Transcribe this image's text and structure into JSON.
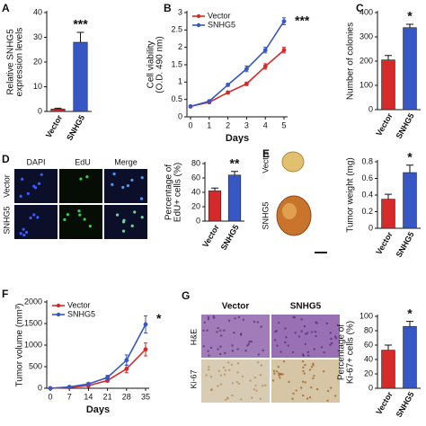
{
  "chart_data": [
    {
      "panel": "A",
      "type": "bar",
      "categories": [
        "Vector",
        "SNHG5"
      ],
      "values": [
        1,
        28
      ],
      "errors": [
        0.3,
        4
      ],
      "colors": [
        "#d42a2a",
        "#3757c4"
      ],
      "ylim": [
        0,
        40
      ],
      "yticks": [
        0,
        10,
        20,
        30,
        40
      ],
      "ylabel": [
        "Relative SNHG5",
        "expression levels"
      ],
      "annotation": "***"
    },
    {
      "panel": "B",
      "type": "line",
      "x": [
        0,
        1,
        2,
        3,
        4,
        5
      ],
      "xlim": [
        0,
        5
      ],
      "xticks": [
        0,
        1,
        2,
        3,
        4,
        5
      ],
      "ylim": [
        0,
        3
      ],
      "yticks": [
        0,
        0.5,
        1,
        1.5,
        2,
        2.5,
        3
      ],
      "xlabel": "Days",
      "ylabel": [
        "Cell viability",
        "(O.D. 490 nm)"
      ],
      "annotation": "***",
      "series": [
        {
          "name": "Vector",
          "color": "#d42a2a",
          "values": [
            0.3,
            0.42,
            0.7,
            0.95,
            1.45,
            1.92
          ],
          "errors": [
            0.02,
            0.03,
            0.04,
            0.05,
            0.08,
            0.08
          ]
        },
        {
          "name": "SNHG5",
          "color": "#3757c4",
          "values": [
            0.3,
            0.45,
            0.92,
            1.38,
            1.92,
            2.75
          ],
          "errors": [
            0.02,
            0.03,
            0.04,
            0.08,
            0.08,
            0.1
          ]
        }
      ]
    },
    {
      "panel": "C",
      "type": "bar",
      "categories": [
        "Vector",
        "SNHG5"
      ],
      "values": [
        205,
        338
      ],
      "errors": [
        18,
        14
      ],
      "colors": [
        "#d42a2a",
        "#3757c4"
      ],
      "ylim": [
        0,
        400
      ],
      "yticks": [
        0,
        100,
        200,
        300,
        400
      ],
      "ylabel": [
        "Number of colonies"
      ],
      "annotation": "*"
    },
    {
      "panel": "D",
      "type": "bar",
      "categories": [
        "Vector",
        "SNHG5"
      ],
      "values": [
        42,
        64
      ],
      "errors": [
        4,
        5
      ],
      "colors": [
        "#d42a2a",
        "#3757c4"
      ],
      "ylim": [
        0,
        80
      ],
      "yticks": [
        0,
        20,
        40,
        60,
        80
      ],
      "ylabel": [
        "Percentage of",
        "EdU+ cells (%)"
      ],
      "annotation": "**"
    },
    {
      "panel": "E",
      "type": "bar",
      "categories": [
        "Vector",
        "SNHG5"
      ],
      "values": [
        0.35,
        0.67
      ],
      "errors": [
        0.06,
        0.09
      ],
      "colors": [
        "#d42a2a",
        "#3757c4"
      ],
      "ylim": [
        0,
        0.8
      ],
      "yticks": [
        0,
        0.2,
        0.4,
        0.6,
        0.8
      ],
      "ylabel": [
        "Tumor weight (mg)"
      ],
      "annotation": "*"
    },
    {
      "panel": "F",
      "type": "line",
      "x": [
        0,
        7,
        14,
        21,
        28,
        35
      ],
      "xlim": [
        0,
        35
      ],
      "xticks": [
        0,
        7,
        14,
        21,
        28,
        35
      ],
      "ylim": [
        0,
        2000
      ],
      "yticks": [
        0,
        500,
        1000,
        1500,
        2000
      ],
      "xlabel": "Days",
      "ylabel": [
        "Tumor volume (mm³)"
      ],
      "annotation": "*",
      "series": [
        {
          "name": "Vector",
          "color": "#d42a2a",
          "values": [
            0,
            20,
            60,
            180,
            450,
            900
          ],
          "errors": [
            0,
            10,
            20,
            40,
            90,
            150
          ]
        },
        {
          "name": "SNHG5",
          "color": "#3757c4",
          "values": [
            0,
            30,
            100,
            250,
            650,
            1480
          ],
          "errors": [
            0,
            10,
            25,
            50,
            120,
            200
          ]
        }
      ]
    },
    {
      "panel": "G",
      "type": "bar",
      "categories": [
        "Vector",
        "SNHG5"
      ],
      "values": [
        53,
        86
      ],
      "errors": [
        7,
        7
      ],
      "colors": [
        "#d42a2a",
        "#3757c4"
      ],
      "ylim": [
        0,
        100
      ],
      "yticks": [
        0,
        20,
        40,
        60,
        80,
        100
      ],
      "ylabel": [
        "Percentage of",
        "Ki-67+ cells (%)"
      ],
      "annotation": "*"
    }
  ],
  "images": {
    "D": {
      "columns": [
        "DAPI",
        "EdU",
        "Merge"
      ],
      "rows": [
        "Vector",
        "SNHG5"
      ]
    },
    "E": {
      "rows": [
        "Vector",
        "SNHG5"
      ]
    },
    "G": {
      "columns": [
        "Vector",
        "SNHG5"
      ],
      "rows": [
        "H&E",
        "Ki-67"
      ]
    }
  }
}
